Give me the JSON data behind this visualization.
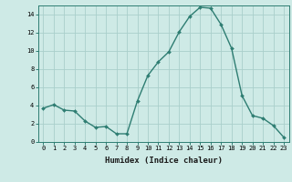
{
  "xlabel": "Humidex (Indice chaleur)",
  "x": [
    0,
    1,
    2,
    3,
    4,
    5,
    6,
    7,
    8,
    9,
    10,
    11,
    12,
    13,
    14,
    15,
    16,
    17,
    18,
    19,
    20,
    21,
    22,
    23
  ],
  "y": [
    3.7,
    4.1,
    3.5,
    3.4,
    2.3,
    1.6,
    1.7,
    0.9,
    0.9,
    4.5,
    7.3,
    8.8,
    9.9,
    12.1,
    13.8,
    14.8,
    14.7,
    12.9,
    10.3,
    5.1,
    2.9,
    2.6,
    1.8,
    0.5
  ],
  "line_color": "#2e7d72",
  "marker": "D",
  "marker_size": 2.0,
  "bg_color": "#ceeae6",
  "grid_color": "#aacfcb",
  "ylim": [
    0,
    15
  ],
  "xlim": [
    -0.5,
    23.5
  ],
  "yticks": [
    0,
    2,
    4,
    6,
    8,
    10,
    12,
    14
  ],
  "xticks": [
    0,
    1,
    2,
    3,
    4,
    5,
    6,
    7,
    8,
    9,
    10,
    11,
    12,
    13,
    14,
    15,
    16,
    17,
    18,
    19,
    20,
    21,
    22,
    23
  ],
  "tick_fontsize": 5.0,
  "xlabel_fontsize": 6.5,
  "line_width": 1.0
}
